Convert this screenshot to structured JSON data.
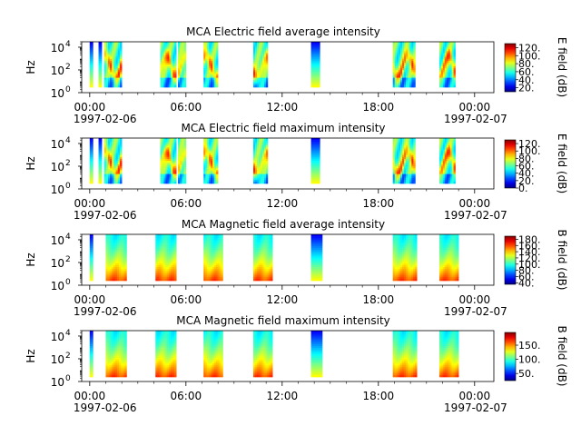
{
  "chart_data": [
    {
      "type": "heatmap",
      "title": "MCA  Electric field average intensity",
      "ylabel": "Hz",
      "colorbar_label": "E field (dB)",
      "colorbar_ticks": [
        "20.",
        "40.",
        "60.",
        "80.",
        "100.",
        "120."
      ],
      "colorbar_tick_values": [
        20,
        40,
        60,
        80,
        100,
        120
      ],
      "colorbar_range": [
        10,
        130
      ],
      "x_tick_labels": [
        "00:00",
        "06:00",
        "12:00",
        "18:00",
        "00:00"
      ],
      "x_tick_values_hours": [
        0,
        6,
        12,
        18,
        24
      ],
      "date_start": "1997-02-06",
      "date_end": "1997-02-07",
      "xlim_hours": [
        -0.5,
        25.2
      ],
      "ylim": [
        1,
        30000
      ],
      "y_scale": "log",
      "y_ticks": [
        1,
        100,
        10000
      ],
      "y_tick_labels": [
        "10",
        "10",
        "10"
      ],
      "y_tick_exponents": [
        "0",
        "2",
        "4"
      ],
      "data_segments_hours": [
        [
          0.0,
          0.2
        ],
        [
          0.55,
          0.75
        ],
        [
          0.9,
          1.5
        ],
        [
          1.5,
          2.0
        ],
        [
          4.4,
          5.4
        ],
        [
          5.5,
          6.0
        ],
        [
          7.1,
          8.0
        ],
        [
          10.2,
          11.1
        ],
        [
          13.8,
          14.2
        ],
        [
          14.2,
          14.35
        ],
        [
          18.9,
          20.3
        ],
        [
          21.8,
          22.8
        ]
      ],
      "colormap": "jet",
      "pattern": "e-field"
    },
    {
      "type": "heatmap",
      "title": "MCA  Electric field maximum intensity",
      "ylabel": "Hz",
      "colorbar_label": "E field (dB)",
      "colorbar_ticks": [
        "0.",
        "20.",
        "40.",
        "60.",
        "80.",
        "100.",
        "120."
      ],
      "colorbar_tick_values": [
        0,
        20,
        40,
        60,
        80,
        100,
        120
      ],
      "colorbar_range": [
        0,
        130
      ],
      "x_tick_labels": [
        "00:00",
        "06:00",
        "12:00",
        "18:00",
        "00:00"
      ],
      "x_tick_values_hours": [
        0,
        6,
        12,
        18,
        24
      ],
      "date_start": "1997-02-06",
      "date_end": "1997-02-07",
      "xlim_hours": [
        -0.5,
        25.2
      ],
      "ylim": [
        1,
        30000
      ],
      "y_scale": "log",
      "y_ticks": [
        1,
        100,
        10000
      ],
      "y_tick_labels": [
        "10",
        "10",
        "10"
      ],
      "y_tick_exponents": [
        "0",
        "2",
        "4"
      ],
      "data_segments_hours": [
        [
          0.0,
          0.2
        ],
        [
          0.55,
          0.75
        ],
        [
          0.9,
          1.5
        ],
        [
          1.5,
          2.0
        ],
        [
          4.4,
          5.4
        ],
        [
          5.5,
          6.0
        ],
        [
          7.1,
          8.0
        ],
        [
          10.2,
          11.1
        ],
        [
          13.8,
          14.2
        ],
        [
          14.2,
          14.35
        ],
        [
          18.9,
          20.3
        ],
        [
          21.8,
          22.8
        ]
      ],
      "colormap": "jet",
      "pattern": "e-field"
    },
    {
      "type": "heatmap",
      "title": "MCA  Magnetic field average intensity",
      "ylabel": "Hz",
      "colorbar_label": "B field (dB)",
      "colorbar_ticks": [
        "40.",
        "60.",
        "80.",
        "100.",
        "120.",
        "140.",
        "160.",
        "180."
      ],
      "colorbar_tick_values": [
        40,
        60,
        80,
        100,
        120,
        140,
        160,
        180
      ],
      "colorbar_range": [
        35,
        190
      ],
      "x_tick_labels": [
        "00:00",
        "06:00",
        "12:00",
        "18:00",
        "00:00"
      ],
      "x_tick_values_hours": [
        0,
        6,
        12,
        18,
        24
      ],
      "date_start": "1997-02-06",
      "date_end": "1997-02-07",
      "xlim_hours": [
        -0.5,
        25.2
      ],
      "ylim": [
        1,
        30000
      ],
      "y_scale": "log",
      "y_ticks": [
        1,
        100,
        10000
      ],
      "y_tick_labels": [
        "10",
        "10",
        "10"
      ],
      "y_tick_exponents": [
        "0",
        "2",
        "4"
      ],
      "data_segments_hours": [
        [
          0.0,
          0.2
        ],
        [
          1.0,
          2.3
        ],
        [
          4.1,
          5.4
        ],
        [
          7.1,
          8.3
        ],
        [
          10.2,
          11.4
        ],
        [
          13.8,
          14.2
        ],
        [
          14.2,
          14.5
        ],
        [
          18.9,
          20.4
        ],
        [
          21.8,
          23.0
        ]
      ],
      "colormap": "jet",
      "pattern": "b-field"
    },
    {
      "type": "heatmap",
      "title": "MCA  Magnetic field maximum intensity",
      "ylabel": "Hz",
      "colorbar_label": "B field (dB)",
      "colorbar_ticks": [
        "50.",
        "100.",
        "150."
      ],
      "colorbar_tick_values": [
        50,
        100,
        150
      ],
      "colorbar_range": [
        25,
        195
      ],
      "x_tick_labels": [
        "00:00",
        "06:00",
        "12:00",
        "18:00",
        "00:00"
      ],
      "x_tick_values_hours": [
        0,
        6,
        12,
        18,
        24
      ],
      "date_start": "1997-02-06",
      "date_end": "1997-02-07",
      "xlim_hours": [
        -0.5,
        25.2
      ],
      "ylim": [
        1,
        30000
      ],
      "y_scale": "log",
      "y_ticks": [
        1,
        100,
        10000
      ],
      "y_tick_labels": [
        "10",
        "10",
        "10"
      ],
      "y_tick_exponents": [
        "0",
        "2",
        "4"
      ],
      "data_segments_hours": [
        [
          0.0,
          0.2
        ],
        [
          1.0,
          2.3
        ],
        [
          4.1,
          5.4
        ],
        [
          7.1,
          8.3
        ],
        [
          10.2,
          11.4
        ],
        [
          13.8,
          14.2
        ],
        [
          14.2,
          14.5
        ],
        [
          18.9,
          20.4
        ],
        [
          21.8,
          23.0
        ]
      ],
      "colormap": "jet",
      "pattern": "b-field"
    }
  ]
}
